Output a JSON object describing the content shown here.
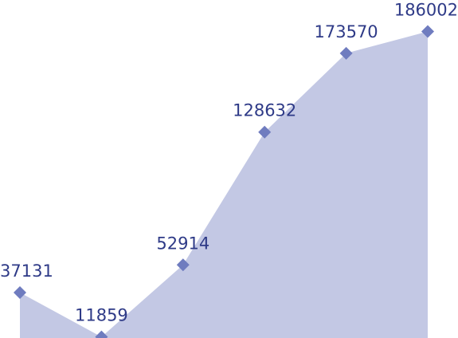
{
  "chart_data": {
    "type": "area",
    "x": [
      "1",
      "2",
      "3",
      "4",
      "5",
      "6"
    ],
    "values": [
      37131,
      11859,
      52914,
      128632,
      173570,
      186002
    ],
    "data_labels": [
      "37131",
      "11859",
      "52914",
      "128632",
      "173570",
      "186002"
    ],
    "grid": false,
    "legend": "none",
    "colors": {
      "fill": "#c3c8e4",
      "marker": "#6f7cbf",
      "label": "#2e3a87"
    }
  }
}
